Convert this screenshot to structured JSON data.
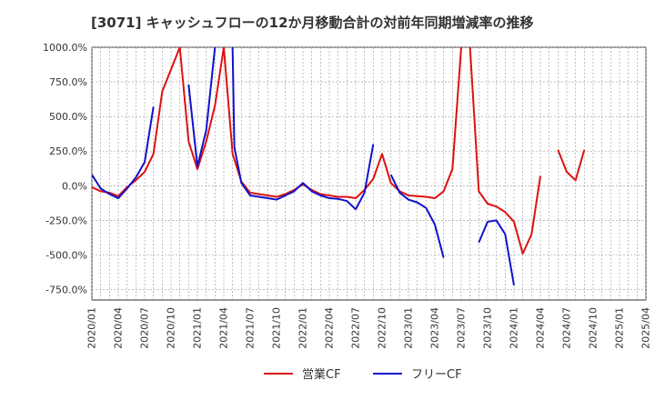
{
  "chart_data": {
    "type": "line",
    "title": "[3071]  キャッシュフローの12か月移動合計の対前年同期増減率の推移",
    "xlabel": "",
    "ylabel": "",
    "ylim": [
      -825,
      1000
    ],
    "y_ticks": [
      -750,
      -500,
      -250,
      0,
      250,
      500,
      750,
      1000
    ],
    "y_tick_labels": [
      "-750.0%",
      "-500.0%",
      "-250.0%",
      "0.0%",
      "250.0%",
      "500.0%",
      "750.0%",
      "1000.0%"
    ],
    "x_start": "2020/01",
    "x_end": "2025/04",
    "x_tick_labels": [
      "2020/01",
      "2020/04",
      "2020/07",
      "2020/10",
      "2021/01",
      "2021/04",
      "2021/07",
      "2021/10",
      "2022/01",
      "2022/04",
      "2022/07",
      "2022/10",
      "2023/01",
      "2023/04",
      "2023/07",
      "2023/10",
      "2024/01",
      "2024/04",
      "2024/07",
      "2024/10",
      "2025/01",
      "2025/04"
    ],
    "grid": true,
    "legend_position": "bottom",
    "series": [
      {
        "name": "営業CF",
        "color": "#dd1111",
        "points": [
          [
            0,
            -10
          ],
          [
            1,
            -40
          ],
          [
            2,
            -50
          ],
          [
            3,
            -75
          ],
          [
            4,
            -10
          ],
          [
            5,
            40
          ],
          [
            6,
            100
          ],
          [
            7,
            230
          ],
          [
            8,
            680
          ],
          [
            10,
            1000
          ],
          [
            11,
            320
          ],
          [
            12,
            120
          ],
          [
            13,
            320
          ],
          [
            14,
            580
          ],
          [
            15,
            1000
          ],
          [
            16,
            230
          ],
          [
            17,
            30
          ],
          [
            18,
            -50
          ],
          [
            19,
            -60
          ],
          [
            20,
            -70
          ],
          [
            21,
            -80
          ],
          [
            22,
            -60
          ],
          [
            23,
            -30
          ],
          [
            24,
            10
          ],
          [
            25,
            -30
          ],
          [
            26,
            -60
          ],
          [
            27,
            -70
          ],
          [
            28,
            -80
          ],
          [
            29,
            -80
          ],
          [
            30,
            -90
          ],
          [
            31,
            -30
          ],
          [
            32,
            50
          ],
          [
            33,
            230
          ],
          [
            34,
            20
          ],
          [
            35,
            -40
          ],
          [
            36,
            -70
          ],
          [
            37,
            -75
          ],
          [
            38,
            -80
          ],
          [
            39,
            -90
          ],
          [
            40,
            -40
          ],
          [
            41,
            120
          ],
          [
            42,
            1000
          ],
          null,
          [
            43,
            1000
          ],
          [
            44,
            -40
          ],
          [
            45,
            -130
          ],
          [
            46,
            -150
          ],
          [
            47,
            -190
          ],
          [
            48,
            -260
          ],
          [
            49,
            -490
          ],
          [
            50,
            -350
          ],
          [
            51,
            70
          ],
          null,
          [
            53,
            260
          ],
          [
            54,
            100
          ],
          [
            55,
            40
          ],
          [
            56,
            260
          ]
        ]
      },
      {
        "name": "フリーCF",
        "color": "#1111cc",
        "points": [
          [
            0,
            80
          ],
          [
            1,
            -20
          ],
          [
            2,
            -60
          ],
          [
            3,
            -90
          ],
          [
            4,
            -20
          ],
          [
            5,
            60
          ],
          [
            6,
            170
          ],
          [
            7,
            570
          ],
          null,
          [
            11,
            730
          ],
          [
            12,
            140
          ],
          [
            13,
            400
          ],
          [
            14,
            1000
          ],
          null,
          [
            16,
            1000
          ],
          [
            16.2,
            280
          ],
          [
            17,
            20
          ],
          [
            18,
            -70
          ],
          [
            19,
            -80
          ],
          [
            20,
            -90
          ],
          [
            21,
            -100
          ],
          [
            22,
            -70
          ],
          [
            23,
            -40
          ],
          [
            24,
            20
          ],
          [
            25,
            -40
          ],
          [
            26,
            -70
          ],
          [
            27,
            -90
          ],
          [
            28,
            -95
          ],
          [
            29,
            -110
          ],
          [
            30,
            -170
          ],
          [
            31,
            -50
          ],
          [
            32,
            300
          ],
          null,
          [
            34,
            80
          ],
          [
            35,
            -50
          ],
          [
            36,
            -100
          ],
          [
            37,
            -120
          ],
          [
            38,
            -160
          ],
          [
            39,
            -280
          ],
          [
            40,
            -520
          ],
          null,
          [
            44,
            -410
          ],
          [
            45,
            -260
          ],
          [
            46,
            -250
          ],
          [
            47,
            -350
          ],
          [
            48,
            -720
          ]
        ]
      }
    ]
  }
}
